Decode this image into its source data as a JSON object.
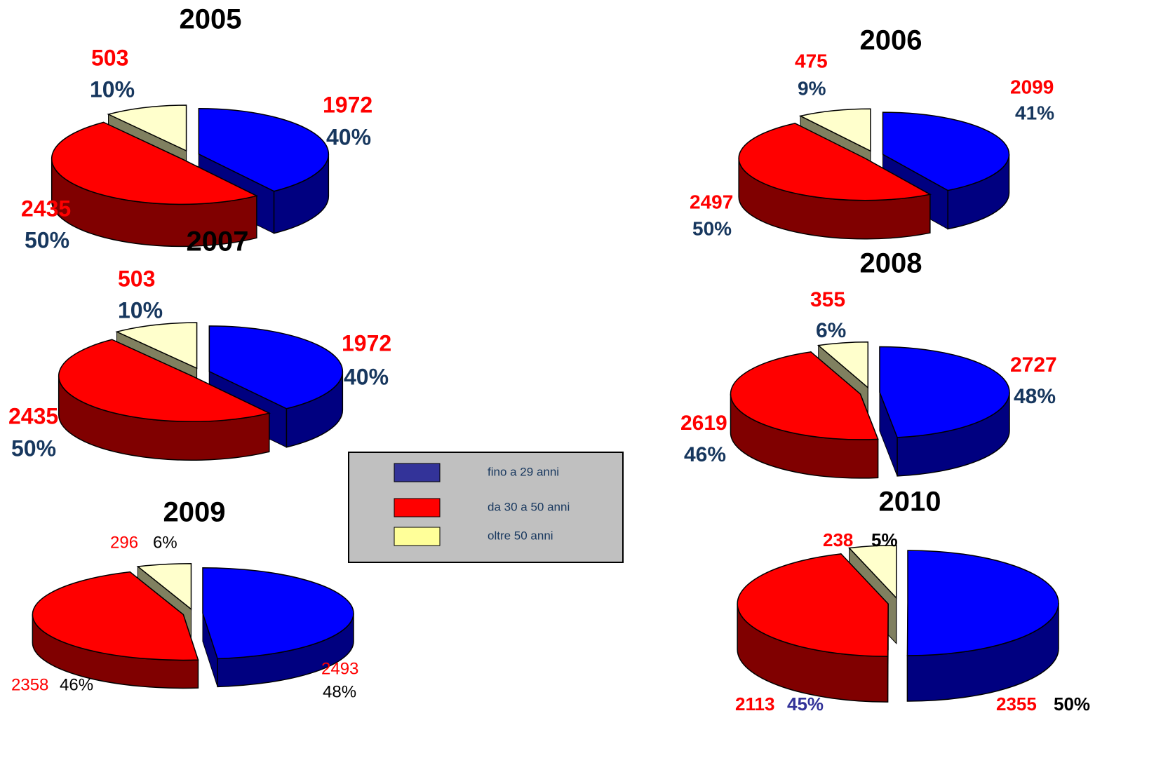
{
  "chart_data": [
    {
      "type": "pie",
      "title": "2005",
      "values": [
        1972,
        2435,
        503
      ],
      "percent_labels": [
        "40%",
        "50%",
        "10%"
      ]
    },
    {
      "type": "pie",
      "title": "2006",
      "values": [
        2099,
        2497,
        475
      ],
      "percent_labels": [
        "41%",
        "50%",
        "9%"
      ]
    },
    {
      "type": "pie",
      "title": "2007",
      "values": [
        1972,
        2435,
        503
      ],
      "percent_labels": [
        "40%",
        "50%",
        "10%"
      ]
    },
    {
      "type": "pie",
      "title": "2008",
      "values": [
        2727,
        2619,
        355
      ],
      "percent_labels": [
        "48%",
        "46%",
        "6%"
      ]
    },
    {
      "type": "pie",
      "title": "2009",
      "values": [
        2493,
        2358,
        296
      ],
      "percent_labels": [
        "48%",
        "46%",
        "6%"
      ]
    },
    {
      "type": "pie",
      "title": "2010",
      "values": [
        2355,
        2113,
        238
      ],
      "percent_labels": [
        "50%",
        "45%",
        "5%"
      ]
    }
  ],
  "colors": [
    "#0000ff",
    "#ff0000",
    "#ffffcc"
  ],
  "legend": {
    "items": [
      {
        "name": "fino a 29 anni",
        "color": "#333399"
      },
      {
        "name": "da 30 a 50 anni",
        "color": "#ff0000"
      },
      {
        "name": "oltre 50 anni",
        "color": "#ffff99"
      }
    ]
  }
}
